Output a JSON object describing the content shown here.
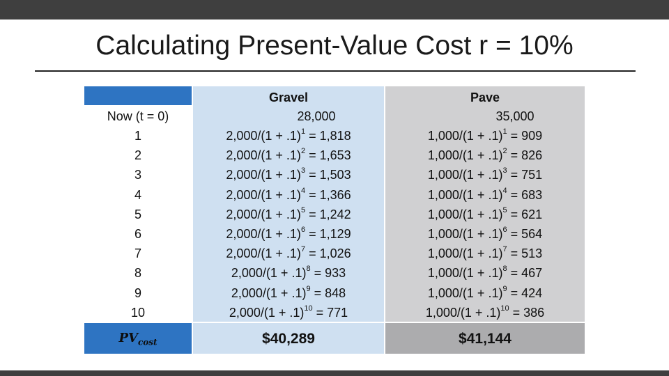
{
  "title": "Calculating Present-Value Cost r = 10%",
  "table": {
    "headers": {
      "time": "",
      "gravel": "Gravel",
      "pave": "Pave"
    },
    "initial": {
      "time": "Now (t = 0)",
      "gravel": "28,000",
      "pave": "35,000"
    },
    "rows": [
      {
        "t": "1",
        "g_base": "2,000/(1 + .1)",
        "g_exp": "1",
        "g_res": " = 1,818",
        "p_base": "1,000/(1 + .1)",
        "p_exp": "1",
        "p_res": " = 909"
      },
      {
        "t": "2",
        "g_base": "2,000/(1 + .1)",
        "g_exp": "2",
        "g_res": " = 1,653",
        "p_base": "1,000/(1 + .1)",
        "p_exp": "2",
        "p_res": " = 826"
      },
      {
        "t": "3",
        "g_base": "2,000/(1 + .1)",
        "g_exp": "3",
        "g_res": " = 1,503",
        "p_base": "1,000/(1 + .1)",
        "p_exp": "3",
        "p_res": " = 751"
      },
      {
        "t": "4",
        "g_base": "2,000/(1 + .1)",
        "g_exp": "4",
        "g_res": " = 1,366",
        "p_base": "1,000/(1 + .1)",
        "p_exp": "4",
        "p_res": " = 683"
      },
      {
        "t": "5",
        "g_base": "2,000/(1 + .1)",
        "g_exp": "5",
        "g_res": " = 1,242",
        "p_base": "1,000/(1 + .1)",
        "p_exp": "5",
        "p_res": " = 621"
      },
      {
        "t": "6",
        "g_base": "2,000/(1 + .1)",
        "g_exp": "6",
        "g_res": " = 1,129",
        "p_base": "1,000/(1 + .1)",
        "p_exp": "6",
        "p_res": " = 564"
      },
      {
        "t": "7",
        "g_base": "2,000/(1 + .1)",
        "g_exp": "7",
        "g_res": " = 1,026",
        "p_base": "1,000/(1 + .1)",
        "p_exp": "7",
        "p_res": " = 513"
      },
      {
        "t": "8",
        "g_base": "2,000/(1 + .1)",
        "g_exp": "8",
        "g_res": " = 933",
        "p_base": "1,000/(1 + .1)",
        "p_exp": "8",
        "p_res": " = 467"
      },
      {
        "t": "9",
        "g_base": "2,000/(1 + .1)",
        "g_exp": "9",
        "g_res": " = 848",
        "p_base": "1,000/(1 + .1)",
        "p_exp": "9",
        "p_res": " = 424"
      },
      {
        "t": "10",
        "g_base": "2,000/(1 + .1)",
        "g_exp": "10",
        "g_res": " = 771",
        "p_base": "1,000/(1 + .1)",
        "p_exp": "10",
        "p_res": " = 386"
      }
    ],
    "footer": {
      "label_main": "PV",
      "label_sub": "cost",
      "gravel": "$40,289",
      "pave": "$41,144"
    }
  },
  "colors": {
    "bar": "#3f3f3f",
    "blue": "#2e74c2",
    "gravel_bg": "#cfe0f1",
    "pave_bg": "#d0d0d2",
    "pave_footer_bg": "#acacae"
  }
}
